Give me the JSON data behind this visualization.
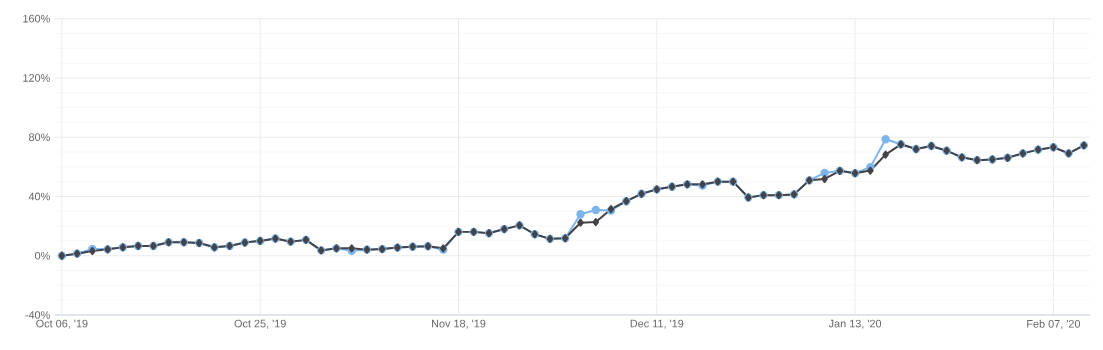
{
  "chart_data": {
    "type": "line",
    "categories": [
      "Oct 06, '19",
      null,
      null,
      null,
      null,
      null,
      null,
      null,
      null,
      null,
      null,
      null,
      null,
      "Oct 25, '19",
      null,
      null,
      null,
      null,
      null,
      null,
      null,
      null,
      null,
      null,
      null,
      null,
      "Nov 18, '19",
      null,
      null,
      null,
      null,
      null,
      null,
      null,
      null,
      null,
      null,
      null,
      null,
      "Dec 11, '19",
      null,
      null,
      null,
      null,
      null,
      null,
      null,
      null,
      null,
      null,
      null,
      null,
      "Jan 13, '20",
      null,
      null,
      null,
      null,
      null,
      null,
      null,
      null,
      null,
      null,
      null,
      null,
      "Feb 07, '20",
      null,
      null
    ],
    "series": [
      {
        "color": "#7cb5ec",
        "marker": "circle",
        "values": [
          0,
          1.4,
          4.5,
          4.3,
          5.7,
          6.6,
          6.6,
          9.1,
          9.1,
          8.6,
          5.7,
          6.6,
          8.9,
          10,
          11.6,
          9.5,
          10.7,
          3.6,
          5,
          3.4,
          4.1,
          4.5,
          5.5,
          6.1,
          6.4,
          4.1,
          16.1,
          16.1,
          15.2,
          18,
          20.5,
          14.5,
          11.4,
          11.8,
          28,
          30.9,
          30.5,
          36.8,
          41.8,
          44.8,
          46.6,
          48.2,
          47.3,
          50,
          50,
          39.3,
          40.9,
          40.9,
          41.4,
          50.9,
          55.9,
          57.3,
          55.7,
          59.8,
          78.6,
          75.2,
          72,
          74.1,
          70.9,
          66.4,
          64.5,
          65,
          66.1,
          69.1,
          71.6,
          73.2,
          69.1,
          74.5
        ]
      },
      {
        "color": "#434348",
        "marker": "diamond",
        "values": [
          0,
          1.4,
          3.2,
          4.3,
          5.7,
          6.6,
          6.6,
          9.1,
          9.1,
          8.6,
          5.7,
          6.6,
          8.9,
          10,
          11.6,
          9.5,
          10.7,
          3.6,
          5,
          5,
          4.1,
          4.5,
          5.5,
          6.1,
          6.4,
          5,
          16.1,
          16.1,
          15.2,
          18,
          20.5,
          14.5,
          11.4,
          11.8,
          22.3,
          22.7,
          31.4,
          36.8,
          41.8,
          44.8,
          46.6,
          48.2,
          48.2,
          50,
          50,
          39.3,
          40.9,
          40.9,
          41.4,
          50.9,
          51.8,
          57.3,
          55.7,
          57.5,
          68.2,
          75.2,
          72,
          74.1,
          70.9,
          66.4,
          64.5,
          65,
          66.1,
          69.1,
          71.6,
          73.2,
          69.1,
          74.5
        ]
      }
    ],
    "ylim": [
      -40,
      160
    ],
    "yticks": [
      {
        "value": -40,
        "label": "-40%"
      },
      {
        "value": 0,
        "label": "0%"
      },
      {
        "value": 40,
        "label": "40%"
      },
      {
        "value": 80,
        "label": "80%"
      },
      {
        "value": 120,
        "label": "120%"
      },
      {
        "value": 160,
        "label": "160%"
      }
    ],
    "grid": true
  }
}
